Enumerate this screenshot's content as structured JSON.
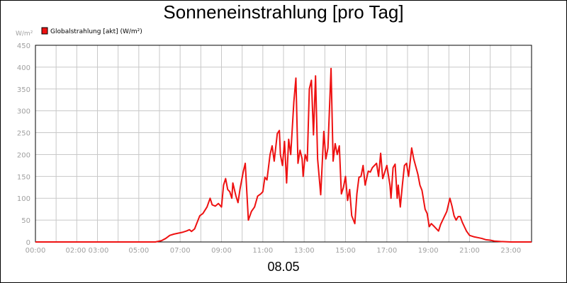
{
  "chart_data": {
    "type": "line",
    "title": "Sonneneinstrahlung [pro Tag]",
    "ylabel": "W/m²",
    "footer": "08.05",
    "ylim": [
      0,
      450
    ],
    "xlim": [
      "00:00",
      "24:00"
    ],
    "grid": true,
    "legend_position": "top-left",
    "y_ticks": [
      "0",
      "50",
      "100",
      "150",
      "200",
      "250",
      "300",
      "350",
      "400",
      "450"
    ],
    "x_ticks": [
      {
        "t": 0,
        "label": "00:00"
      },
      {
        "t": 2.5,
        "label": "02:00 03:00"
      },
      {
        "t": 5,
        "label": "05:00"
      },
      {
        "t": 7,
        "label": "07:00"
      },
      {
        "t": 9,
        "label": "09:00"
      },
      {
        "t": 11,
        "label": "11:00"
      },
      {
        "t": 13,
        "label": "13:00"
      },
      {
        "t": 15,
        "label": "15:00"
      },
      {
        "t": 17,
        "label": "17:00"
      },
      {
        "t": 19,
        "label": "19:00"
      },
      {
        "t": 21,
        "label": "21:00"
      },
      {
        "t": 23,
        "label": "23:00"
      }
    ],
    "series": [
      {
        "name": "Globalstrahlung [akt] (W/m²)",
        "color": "#ee1111",
        "points": [
          [
            0.0,
            0
          ],
          [
            5.8,
            0
          ],
          [
            6.1,
            3
          ],
          [
            6.3,
            8
          ],
          [
            6.5,
            15
          ],
          [
            6.7,
            18
          ],
          [
            6.9,
            20
          ],
          [
            7.1,
            22
          ],
          [
            7.3,
            25
          ],
          [
            7.45,
            28
          ],
          [
            7.55,
            24
          ],
          [
            7.7,
            30
          ],
          [
            7.8,
            42
          ],
          [
            7.95,
            60
          ],
          [
            8.1,
            65
          ],
          [
            8.3,
            80
          ],
          [
            8.45,
            100
          ],
          [
            8.55,
            85
          ],
          [
            8.7,
            82
          ],
          [
            8.85,
            88
          ],
          [
            9.0,
            80
          ],
          [
            9.1,
            130
          ],
          [
            9.2,
            145
          ],
          [
            9.3,
            120
          ],
          [
            9.4,
            115
          ],
          [
            9.5,
            100
          ],
          [
            9.55,
            135
          ],
          [
            9.7,
            105
          ],
          [
            9.8,
            90
          ],
          [
            9.9,
            122
          ],
          [
            10.05,
            160
          ],
          [
            10.15,
            180
          ],
          [
            10.3,
            50
          ],
          [
            10.45,
            70
          ],
          [
            10.6,
            80
          ],
          [
            10.75,
            105
          ],
          [
            10.9,
            110
          ],
          [
            11.0,
            115
          ],
          [
            11.1,
            148
          ],
          [
            11.2,
            142
          ],
          [
            11.35,
            200
          ],
          [
            11.45,
            220
          ],
          [
            11.55,
            185
          ],
          [
            11.7,
            248
          ],
          [
            11.8,
            255
          ],
          [
            11.85,
            200
          ],
          [
            11.95,
            175
          ],
          [
            12.05,
            230
          ],
          [
            12.15,
            135
          ],
          [
            12.25,
            235
          ],
          [
            12.35,
            200
          ],
          [
            12.5,
            320
          ],
          [
            12.6,
            375
          ],
          [
            12.7,
            180
          ],
          [
            12.8,
            210
          ],
          [
            12.9,
            190
          ],
          [
            12.95,
            150
          ],
          [
            13.05,
            200
          ],
          [
            13.15,
            185
          ],
          [
            13.25,
            350
          ],
          [
            13.35,
            370
          ],
          [
            13.45,
            245
          ],
          [
            13.55,
            380
          ],
          [
            13.65,
            190
          ],
          [
            13.8,
            108
          ],
          [
            13.95,
            253
          ],
          [
            14.05,
            190
          ],
          [
            14.15,
            215
          ],
          [
            14.3,
            397
          ],
          [
            14.4,
            185
          ],
          [
            14.5,
            225
          ],
          [
            14.6,
            200
          ],
          [
            14.7,
            220
          ],
          [
            14.8,
            110
          ],
          [
            14.9,
            125
          ],
          [
            15.0,
            150
          ],
          [
            15.1,
            95
          ],
          [
            15.2,
            120
          ],
          [
            15.3,
            60
          ],
          [
            15.45,
            42
          ],
          [
            15.55,
            110
          ],
          [
            15.65,
            148
          ],
          [
            15.75,
            150
          ],
          [
            15.85,
            175
          ],
          [
            15.95,
            130
          ],
          [
            16.1,
            162
          ],
          [
            16.2,
            160
          ],
          [
            16.3,
            170
          ],
          [
            16.5,
            180
          ],
          [
            16.6,
            150
          ],
          [
            16.7,
            203
          ],
          [
            16.8,
            145
          ],
          [
            16.9,
            160
          ],
          [
            17.0,
            175
          ],
          [
            17.05,
            160
          ],
          [
            17.15,
            130
          ],
          [
            17.2,
            100
          ],
          [
            17.3,
            170
          ],
          [
            17.4,
            178
          ],
          [
            17.5,
            100
          ],
          [
            17.55,
            130
          ],
          [
            17.65,
            80
          ],
          [
            17.75,
            130
          ],
          [
            17.85,
            175
          ],
          [
            17.95,
            180
          ],
          [
            18.05,
            150
          ],
          [
            18.2,
            215
          ],
          [
            18.3,
            190
          ],
          [
            18.5,
            155
          ],
          [
            18.6,
            130
          ],
          [
            18.7,
            118
          ],
          [
            18.85,
            75
          ],
          [
            18.95,
            65
          ],
          [
            19.05,
            35
          ],
          [
            19.15,
            42
          ],
          [
            19.3,
            35
          ],
          [
            19.5,
            25
          ],
          [
            19.6,
            40
          ],
          [
            19.75,
            55
          ],
          [
            19.9,
            70
          ],
          [
            20.05,
            100
          ],
          [
            20.15,
            82
          ],
          [
            20.25,
            60
          ],
          [
            20.35,
            50
          ],
          [
            20.45,
            58
          ],
          [
            20.55,
            58
          ],
          [
            20.65,
            45
          ],
          [
            20.75,
            35
          ],
          [
            20.85,
            25
          ],
          [
            21.0,
            15
          ],
          [
            21.2,
            12
          ],
          [
            21.4,
            10
          ],
          [
            21.6,
            8
          ],
          [
            21.8,
            5
          ],
          [
            22.0,
            4
          ],
          [
            22.2,
            2
          ],
          [
            22.5,
            1
          ],
          [
            23.0,
            0
          ],
          [
            24.0,
            0
          ]
        ]
      }
    ]
  }
}
